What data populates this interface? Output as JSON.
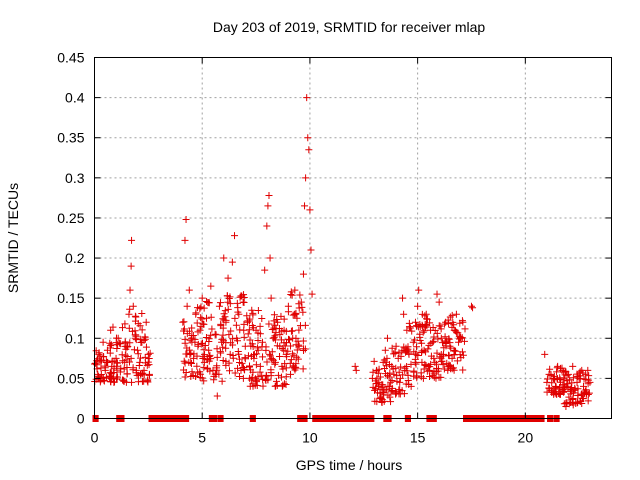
{
  "chart_data": {
    "type": "scatter",
    "title": "Day 203 of 2019, SRMTID for receiver mlap",
    "xlabel": "GPS time / hours",
    "ylabel": "SRMTID / TECUs",
    "xlim": [
      0,
      24
    ],
    "ylim": [
      0,
      0.45
    ],
    "xticks": [
      0,
      5,
      10,
      15,
      20
    ],
    "xtick_labels": [
      "0",
      "5",
      "10",
      "15",
      "20"
    ],
    "yticks": [
      0,
      0.05,
      0.1,
      0.15,
      0.2,
      0.25,
      0.3,
      0.35,
      0.4,
      0.45
    ],
    "ytick_labels": [
      "0",
      "0.05",
      "0.1",
      "0.15",
      "0.2",
      "0.25",
      "0.3",
      "0.35",
      "0.4",
      "0.45"
    ],
    "grid": true,
    "marker": "+",
    "color": "#e00000",
    "series": [
      {
        "name": "SRMTID",
        "points": [
          [
            0.0,
            0.068
          ],
          [
            0.1,
            0.072
          ],
          [
            0.15,
            0.055
          ],
          [
            0.2,
            0.08
          ],
          [
            0.3,
            0.063
          ],
          [
            0.35,
            0.05
          ],
          [
            0.4,
            0.095
          ],
          [
            0.5,
            0.06
          ],
          [
            0.55,
            0.072
          ],
          [
            0.6,
            0.085
          ],
          [
            0.7,
            0.052
          ],
          [
            0.75,
            0.11
          ],
          [
            0.8,
            0.065
          ],
          [
            0.9,
            0.045
          ],
          [
            1.0,
            0.075
          ],
          [
            1.1,
            0.1
          ],
          [
            1.2,
            0.058
          ],
          [
            1.3,
            0.048
          ],
          [
            1.4,
            0.07
          ],
          [
            1.5,
            0.09
          ],
          [
            1.6,
            0.13
          ],
          [
            1.65,
            0.16
          ],
          [
            1.7,
            0.19
          ],
          [
            1.72,
            0.222
          ],
          [
            1.8,
            0.14
          ],
          [
            1.9,
            0.1
          ],
          [
            2.0,
            0.085
          ],
          [
            2.1,
            0.07
          ],
          [
            2.2,
            0.095
          ],
          [
            2.3,
            0.06
          ],
          [
            2.4,
            0.12
          ],
          [
            2.5,
            0.08
          ],
          [
            2.55,
            0.055
          ],
          [
            4.1,
            0.12
          ],
          [
            4.2,
            0.222
          ],
          [
            4.25,
            0.248
          ],
          [
            4.3,
            0.14
          ],
          [
            4.4,
            0.16
          ],
          [
            4.5,
            0.1
          ],
          [
            4.6,
            0.075
          ],
          [
            4.7,
            0.13
          ],
          [
            4.8,
            0.09
          ],
          [
            4.9,
            0.11
          ],
          [
            5.0,
            0.15
          ],
          [
            5.1,
            0.07
          ],
          [
            5.2,
            0.125
          ],
          [
            5.3,
            0.085
          ],
          [
            5.4,
            0.165
          ],
          [
            5.5,
            0.06
          ],
          [
            5.6,
            0.105
          ],
          [
            5.7,
            0.028
          ],
          [
            5.8,
            0.14
          ],
          [
            5.9,
            0.095
          ],
          [
            6.0,
            0.2
          ],
          [
            6.1,
            0.12
          ],
          [
            6.2,
            0.175
          ],
          [
            6.3,
            0.08
          ],
          [
            6.4,
            0.195
          ],
          [
            6.5,
            0.228
          ],
          [
            6.6,
            0.1
          ],
          [
            6.7,
            0.13
          ],
          [
            6.8,
            0.06
          ],
          [
            6.9,
            0.145
          ],
          [
            7.0,
            0.09
          ],
          [
            7.1,
            0.12
          ],
          [
            7.2,
            0.05
          ],
          [
            7.3,
            0.135
          ],
          [
            7.4,
            0.075
          ],
          [
            7.5,
            0.11
          ],
          [
            7.6,
            0.085
          ],
          [
            7.7,
            0.065
          ],
          [
            7.8,
            0.095
          ],
          [
            7.9,
            0.185
          ],
          [
            8.0,
            0.24
          ],
          [
            8.05,
            0.265
          ],
          [
            8.1,
            0.278
          ],
          [
            8.15,
            0.2
          ],
          [
            8.2,
            0.15
          ],
          [
            8.3,
            0.1
          ],
          [
            8.4,
            0.07
          ],
          [
            8.5,
            0.12
          ],
          [
            8.6,
            0.09
          ],
          [
            8.7,
            0.065
          ],
          [
            8.8,
            0.11
          ],
          [
            8.9,
            0.08
          ],
          [
            9.0,
            0.14
          ],
          [
            9.1,
            0.055
          ],
          [
            9.2,
            0.1
          ],
          [
            9.3,
            0.16
          ],
          [
            9.4,
            0.125
          ],
          [
            9.5,
            0.09
          ],
          [
            9.6,
            0.145
          ],
          [
            9.7,
            0.18
          ],
          [
            9.75,
            0.265
          ],
          [
            9.8,
            0.3
          ],
          [
            9.85,
            0.4
          ],
          [
            9.9,
            0.35
          ],
          [
            9.95,
            0.335
          ],
          [
            10.0,
            0.26
          ],
          [
            10.05,
            0.21
          ],
          [
            10.1,
            0.155
          ],
          [
            12.1,
            0.065
          ],
          [
            12.15,
            0.06
          ],
          [
            12.9,
            0.05
          ],
          [
            13.0,
            0.035
          ],
          [
            13.1,
            0.06
          ],
          [
            13.2,
            0.045
          ],
          [
            13.3,
            0.025
          ],
          [
            13.4,
            0.07
          ],
          [
            13.5,
            0.085
          ],
          [
            13.6,
            0.1
          ],
          [
            13.7,
            0.04
          ],
          [
            13.8,
            0.065
          ],
          [
            13.9,
            0.055
          ],
          [
            14.0,
            0.09
          ],
          [
            14.1,
            0.075
          ],
          [
            14.2,
            0.05
          ],
          [
            14.3,
            0.15
          ],
          [
            14.35,
            0.13
          ],
          [
            14.4,
            0.06
          ],
          [
            14.5,
            0.11
          ],
          [
            14.6,
            0.08
          ],
          [
            14.7,
            0.04
          ],
          [
            14.8,
            0.095
          ],
          [
            14.9,
            0.12
          ],
          [
            15.0,
            0.14
          ],
          [
            15.05,
            0.16
          ],
          [
            15.1,
            0.105
          ],
          [
            15.2,
            0.07
          ],
          [
            15.3,
            0.085
          ],
          [
            15.4,
            0.13
          ],
          [
            15.5,
            0.065
          ],
          [
            15.6,
            0.11
          ],
          [
            15.7,
            0.095
          ],
          [
            15.8,
            0.07
          ],
          [
            15.9,
            0.155
          ],
          [
            16.0,
            0.145
          ],
          [
            16.1,
            0.1
          ],
          [
            16.2,
            0.08
          ],
          [
            16.3,
            0.12
          ],
          [
            16.4,
            0.06
          ],
          [
            16.5,
            0.09
          ],
          [
            16.6,
            0.075
          ],
          [
            16.7,
            0.11
          ],
          [
            16.8,
            0.13
          ],
          [
            16.9,
            0.095
          ],
          [
            17.0,
            0.1
          ],
          [
            17.1,
            0.12
          ],
          [
            17.5,
            0.14
          ],
          [
            17.55,
            0.138
          ],
          [
            20.9,
            0.08
          ],
          [
            21.0,
            0.045
          ],
          [
            21.1,
            0.055
          ],
          [
            21.2,
            0.035
          ],
          [
            21.3,
            0.05
          ],
          [
            21.4,
            0.04
          ],
          [
            21.5,
            0.065
          ],
          [
            21.6,
            0.03
          ],
          [
            21.7,
            0.06
          ],
          [
            21.8,
            0.048
          ],
          [
            21.9,
            0.04
          ],
          [
            22.0,
            0.055
          ],
          [
            22.1,
            0.02
          ],
          [
            22.2,
            0.065
          ],
          [
            22.3,
            0.035
          ],
          [
            22.4,
            0.045
          ],
          [
            22.5,
            0.05
          ],
          [
            22.6,
            0.03
          ],
          [
            22.7,
            0.04
          ],
          [
            22.8,
            0.055
          ],
          [
            22.9,
            0.06
          ],
          [
            23.0,
            0.045
          ]
        ],
        "clusters": [
          {
            "x": [
              0.0,
              0.8
            ],
            "y": [
              0.045,
              0.095
            ]
          },
          {
            "x": [
              0.8,
              1.6
            ],
            "y": [
              0.045,
              0.12
            ]
          },
          {
            "x": [
              1.6,
              2.2
            ],
            "y": [
              0.045,
              0.14
            ]
          },
          {
            "x": [
              2.2,
              2.6
            ],
            "y": [
              0.045,
              0.115
            ]
          },
          {
            "x": [
              4.1,
              5.0
            ],
            "y": [
              0.05,
              0.14
            ]
          },
          {
            "x": [
              5.0,
              6.0
            ],
            "y": [
              0.045,
              0.15
            ]
          },
          {
            "x": [
              6.0,
              7.0
            ],
            "y": [
              0.045,
              0.165
            ]
          },
          {
            "x": [
              7.0,
              8.0
            ],
            "y": [
              0.04,
              0.14
            ]
          },
          {
            "x": [
              8.0,
              9.0
            ],
            "y": [
              0.04,
              0.13
            ]
          },
          {
            "x": [
              9.0,
              9.8
            ],
            "y": [
              0.06,
              0.16
            ]
          },
          {
            "x": [
              12.9,
              13.8
            ],
            "y": [
              0.02,
              0.075
            ]
          },
          {
            "x": [
              13.8,
              14.6
            ],
            "y": [
              0.03,
              0.09
            ]
          },
          {
            "x": [
              14.6,
              15.5
            ],
            "y": [
              0.05,
              0.13
            ]
          },
          {
            "x": [
              15.5,
              16.4
            ],
            "y": [
              0.05,
              0.12
            ]
          },
          {
            "x": [
              16.4,
              17.2
            ],
            "y": [
              0.06,
              0.13
            ]
          },
          {
            "x": [
              21.0,
              21.8
            ],
            "y": [
              0.03,
              0.065
            ]
          },
          {
            "x": [
              21.8,
              23.0
            ],
            "y": [
              0.015,
              0.06
            ]
          }
        ]
      },
      {
        "name": "zero-value segments",
        "segments": [
          [
            0.0,
            0.1
          ],
          [
            1.1,
            1.3
          ],
          [
            2.6,
            4.3
          ],
          [
            5.4,
            5.6
          ],
          [
            5.8,
            5.9
          ],
          [
            7.3,
            7.4
          ],
          [
            9.5,
            9.8
          ],
          [
            10.2,
            12.9
          ],
          [
            13.5,
            13.7
          ],
          [
            14.5,
            14.6
          ],
          [
            15.5,
            15.8
          ],
          [
            17.2,
            20.8
          ],
          [
            21.1,
            21.2
          ],
          [
            21.4,
            21.5
          ]
        ]
      }
    ]
  }
}
